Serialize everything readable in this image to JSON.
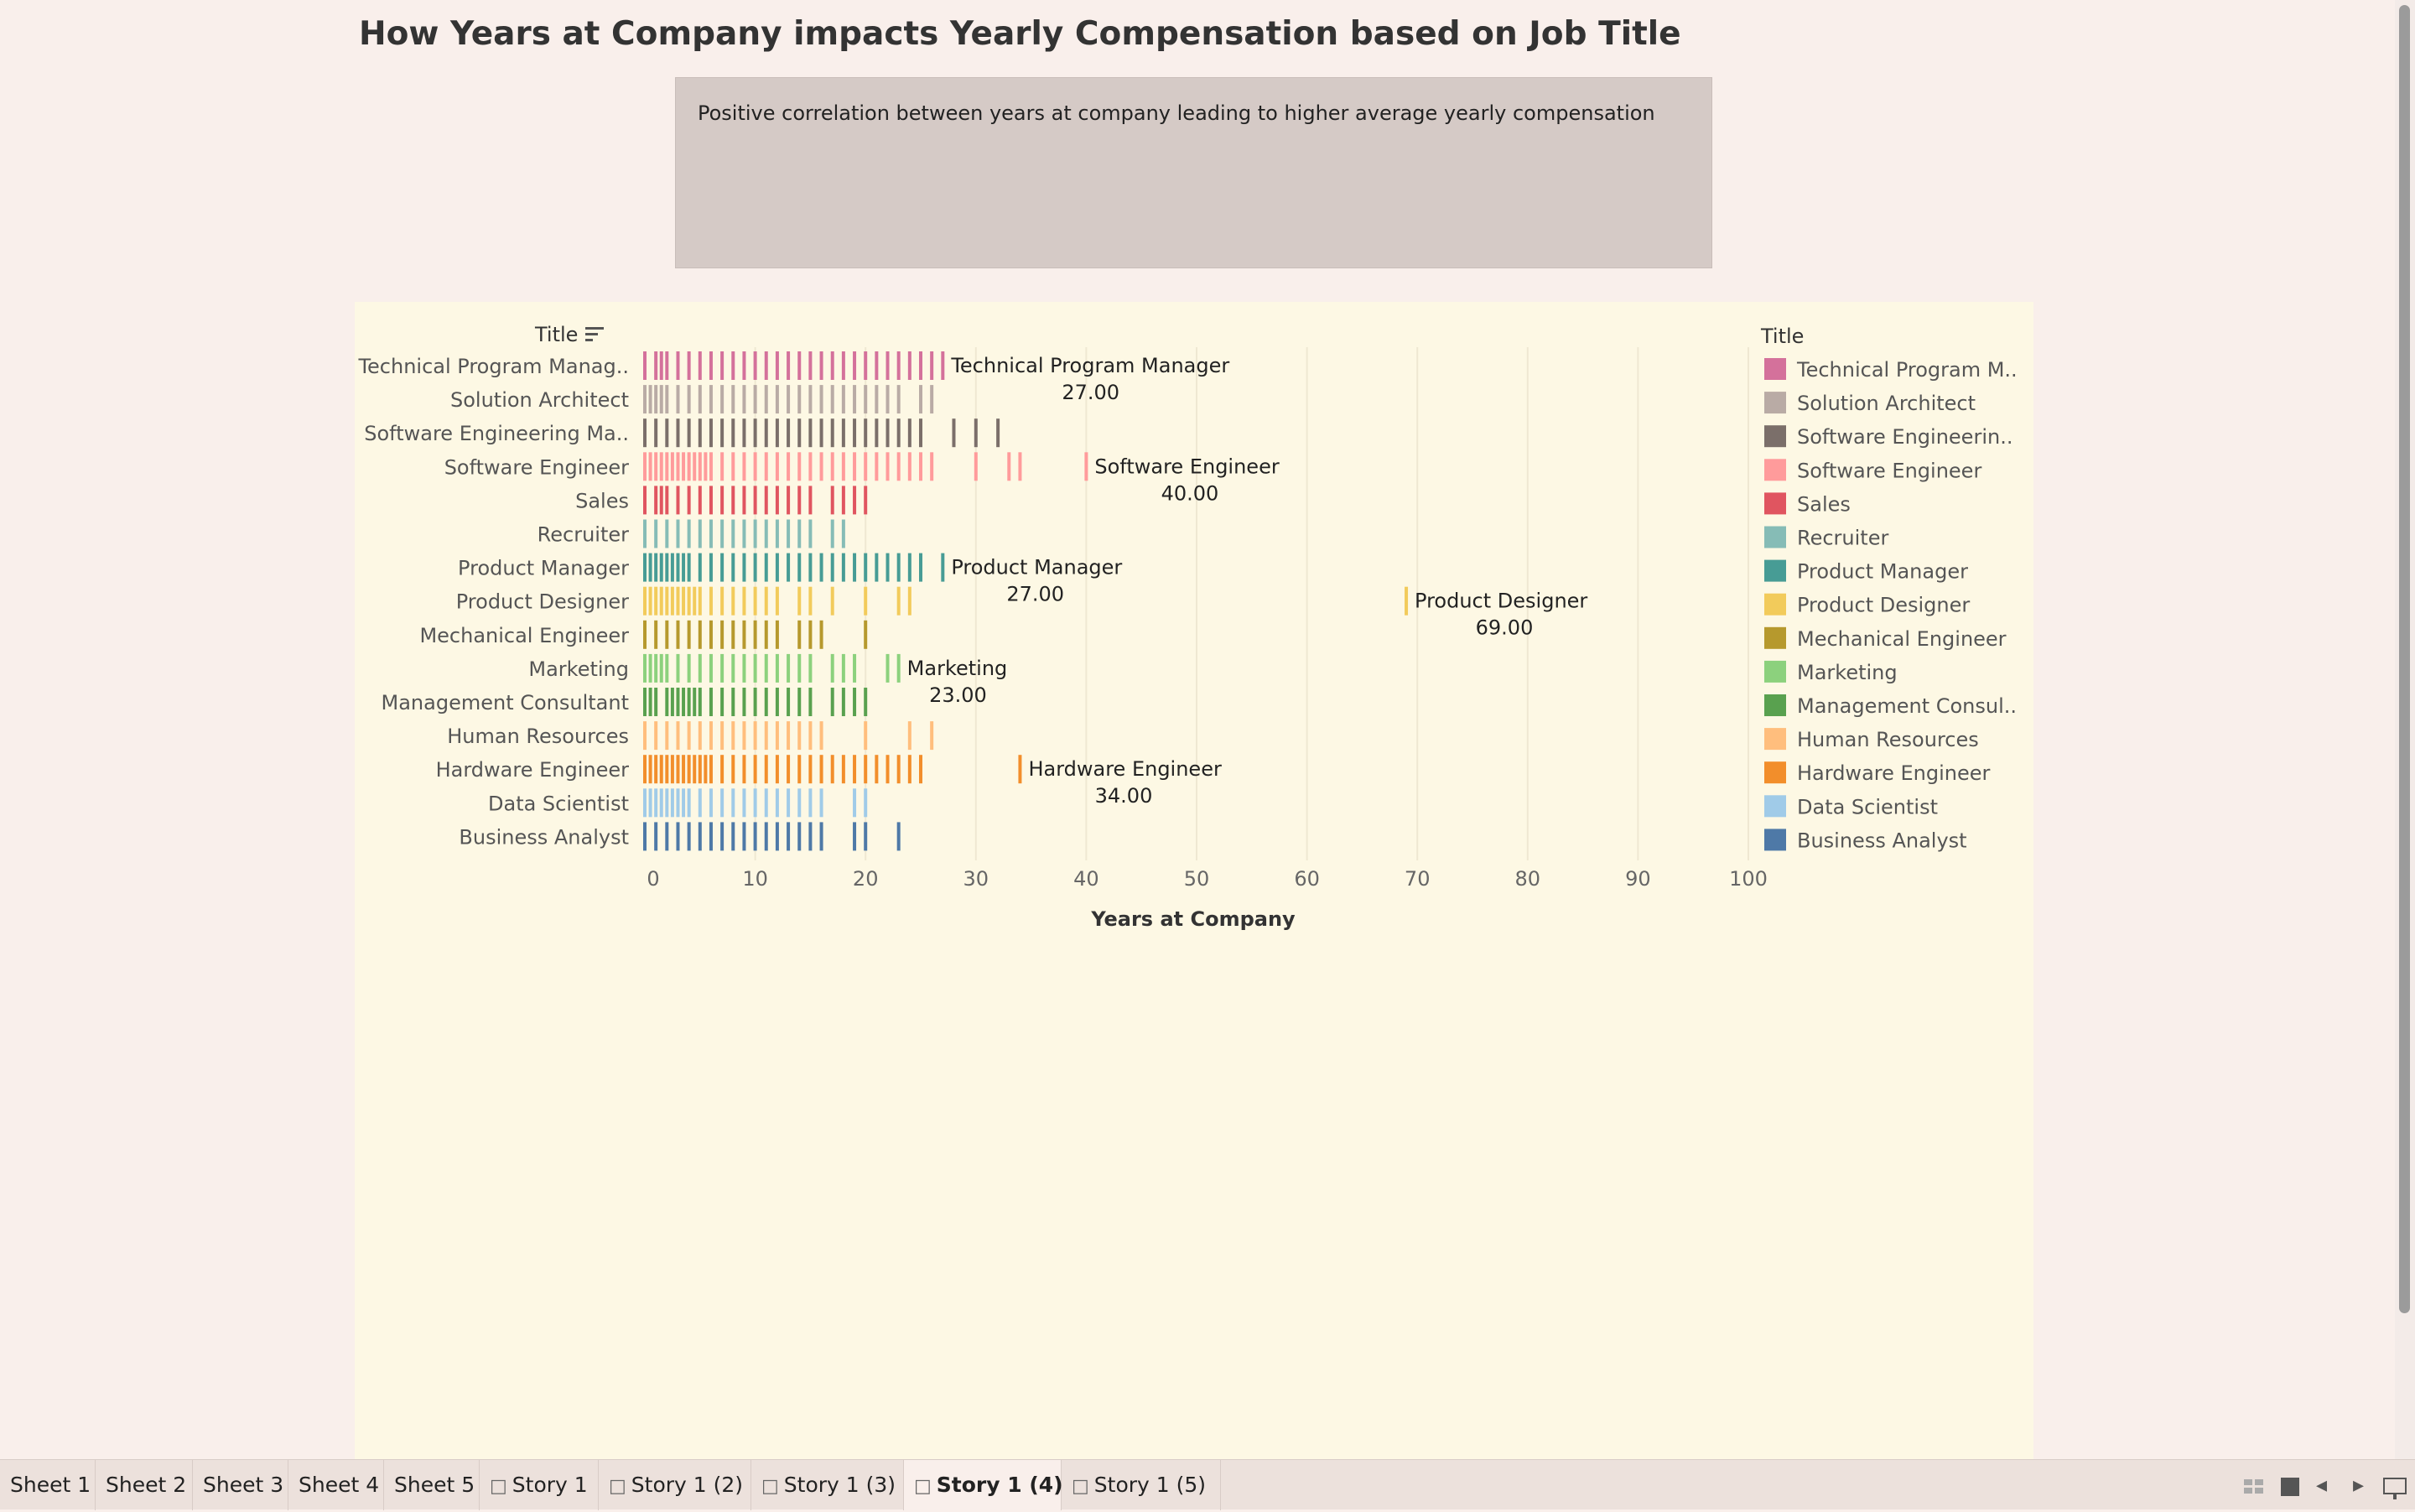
{
  "story": {
    "title": "How Years at Company impacts Yearly Compensation based on Job Title",
    "caption": "Positive correlation between years at company leading to higher average yearly compensation"
  },
  "chart_data": {
    "type": "strip",
    "y_header": "Title",
    "xlabel": "Years at Company",
    "xlim": [
      0,
      100
    ],
    "x_ticks": [
      0,
      10,
      20,
      30,
      40,
      50,
      60,
      70,
      80,
      90,
      100
    ],
    "grid": "vertical",
    "legend": {
      "title": "Title",
      "placement": "right",
      "entries": [
        "Technical Program M..",
        "Solution Architect",
        "Software Engineerin..",
        "Software Engineer",
        "Sales",
        "Recruiter",
        "Product Manager",
        "Product Designer",
        "Mechanical Engineer",
        "Marketing",
        "Management Consul..",
        "Human Resources",
        "Hardware Engineer",
        "Data Scientist",
        "Business Analyst"
      ]
    },
    "categories": [
      {
        "label": "Technical Program Manag..",
        "color": "#d4719b",
        "values": [
          0,
          1,
          1.5,
          2,
          3,
          4,
          5,
          6,
          7,
          8,
          9,
          10,
          11,
          12,
          13,
          14,
          15,
          16,
          17,
          18,
          19,
          20,
          21,
          22,
          23,
          24,
          25,
          26,
          27
        ]
      },
      {
        "label": "Solution Architect",
        "color": "#b9aba5",
        "values": [
          0,
          0.5,
          1,
          1.5,
          2,
          3,
          4,
          5,
          6,
          7,
          8,
          9,
          10,
          11,
          12,
          13,
          14,
          15,
          16,
          17,
          18,
          19,
          20,
          21,
          22,
          23,
          25,
          26
        ]
      },
      {
        "label": "Software Engineering Ma..",
        "color": "#7b6f6a",
        "values": [
          0,
          1,
          2,
          3,
          4,
          5,
          6,
          7,
          8,
          9,
          10,
          11,
          12,
          13,
          14,
          15,
          16,
          17,
          18,
          19,
          20,
          21,
          22,
          23,
          24,
          25,
          28,
          30,
          32
        ]
      },
      {
        "label": "Software Engineer",
        "color": "#ff9b9b",
        "values": [
          0,
          0.5,
          1,
          1.5,
          2,
          2.5,
          3,
          3.5,
          4,
          4.5,
          5,
          5.5,
          6,
          7,
          8,
          9,
          10,
          11,
          12,
          13,
          14,
          15,
          16,
          17,
          18,
          19,
          20,
          21,
          22,
          23,
          24,
          25,
          26,
          30,
          33,
          34,
          40
        ]
      },
      {
        "label": "Sales",
        "color": "#e05560",
        "values": [
          0,
          1,
          1.5,
          2,
          3,
          4,
          5,
          6,
          7,
          8,
          9,
          10,
          11,
          12,
          13,
          14,
          15,
          17,
          18,
          19,
          20
        ]
      },
      {
        "label": "Recruiter",
        "color": "#86bcb6",
        "values": [
          0,
          1,
          2,
          3,
          4,
          5,
          6,
          7,
          8,
          9,
          10,
          11,
          12,
          13,
          14,
          15,
          17,
          18
        ]
      },
      {
        "label": "Product Manager",
        "color": "#479c95",
        "values": [
          0,
          0.5,
          1,
          1.5,
          2,
          2.5,
          3,
          3.5,
          4,
          5,
          6,
          7,
          8,
          9,
          10,
          11,
          12,
          13,
          14,
          15,
          16,
          17,
          18,
          19,
          20,
          21,
          22,
          23,
          24,
          25,
          27
        ]
      },
      {
        "label": "Product Designer",
        "color": "#f2cb5b",
        "values": [
          0,
          0.5,
          1,
          1.5,
          2,
          2.5,
          3,
          3.5,
          4,
          4.5,
          5,
          6,
          7,
          8,
          9,
          10,
          11,
          12,
          14,
          15,
          17,
          20,
          23,
          24,
          69
        ]
      },
      {
        "label": "Mechanical Engineer",
        "color": "#b6992d",
        "values": [
          0,
          1,
          2,
          3,
          4,
          5,
          6,
          7,
          8,
          9,
          10,
          11,
          12,
          14,
          15,
          16,
          20
        ]
      },
      {
        "label": "Marketing",
        "color": "#8cd17d",
        "values": [
          0,
          0.5,
          1,
          1.5,
          2,
          3,
          4,
          5,
          6,
          7,
          8,
          9,
          10,
          11,
          12,
          13,
          14,
          15,
          17,
          18,
          19,
          22,
          23
        ]
      },
      {
        "label": "Management Consultant",
        "color": "#59a14f",
        "values": [
          0,
          0.5,
          1,
          2,
          2.5,
          3,
          3.5,
          4,
          4.5,
          5,
          6,
          7,
          8,
          9,
          10,
          11,
          12,
          13,
          14,
          15,
          17,
          18,
          19,
          20
        ]
      },
      {
        "label": "Human Resources",
        "color": "#ffbe7d",
        "values": [
          0,
          1,
          2,
          3,
          4,
          5,
          6,
          7,
          8,
          9,
          10,
          11,
          12,
          13,
          14,
          15,
          16,
          20,
          24,
          26
        ]
      },
      {
        "label": "Hardware Engineer",
        "color": "#f28e2b",
        "values": [
          0,
          0.5,
          1,
          1.5,
          2,
          2.5,
          3,
          3.5,
          4,
          4.5,
          5,
          5.5,
          6,
          7,
          8,
          9,
          10,
          11,
          12,
          13,
          14,
          15,
          16,
          17,
          18,
          19,
          20,
          21,
          22,
          23,
          24,
          25,
          34
        ]
      },
      {
        "label": "Data Scientist",
        "color": "#a0cbe8",
        "values": [
          0,
          0.5,
          1,
          1.5,
          2,
          2.5,
          3,
          3.5,
          4,
          5,
          6,
          7,
          8,
          9,
          10,
          11,
          12,
          13,
          14,
          15,
          16,
          19,
          20
        ]
      },
      {
        "label": "Business Analyst",
        "color": "#4e79a7",
        "values": [
          0,
          1,
          2,
          3,
          4,
          5,
          6,
          7,
          8,
          9,
          10,
          11,
          12,
          13,
          14,
          15,
          16,
          19,
          20,
          23
        ]
      }
    ],
    "annotations": [
      {
        "category": "Technical Program Manag..",
        "name": "Technical Program Manager",
        "value": "27.00"
      },
      {
        "category": "Software Engineer",
        "name": "Software Engineer",
        "value": "40.00"
      },
      {
        "category": "Product Manager",
        "name": "Product Manager",
        "value": "27.00"
      },
      {
        "category": "Product Designer",
        "name": "Product Designer",
        "value": "69.00"
      },
      {
        "category": "Marketing",
        "name": "Marketing",
        "value": "23.00"
      },
      {
        "category": "Hardware Engineer",
        "name": "Hardware Engineer",
        "value": "34.00"
      }
    ]
  },
  "tabs": [
    {
      "label": "Sheet 1",
      "story": false,
      "active": false
    },
    {
      "label": "Sheet 2",
      "story": false,
      "active": false
    },
    {
      "label": "Sheet 3",
      "story": false,
      "active": false
    },
    {
      "label": "Sheet 4",
      "story": false,
      "active": false
    },
    {
      "label": "Sheet 5",
      "story": false,
      "active": false
    },
    {
      "label": "Story 1",
      "story": true,
      "active": false
    },
    {
      "label": "Story 1 (2)",
      "story": true,
      "active": false
    },
    {
      "label": "Story 1 (3)",
      "story": true,
      "active": false
    },
    {
      "label": "Story 1 (4)",
      "story": true,
      "active": true
    },
    {
      "label": "Story 1 (5)",
      "story": true,
      "active": false
    }
  ],
  "icons": {
    "sort": "sort-descending-icon",
    "story_tab": "story-book-icon",
    "grid_view": "grid-view-icon",
    "single_view": "single-view-icon",
    "prev": "prev-arrow-icon",
    "next": "next-arrow-icon",
    "present": "presentation-mode-icon"
  }
}
